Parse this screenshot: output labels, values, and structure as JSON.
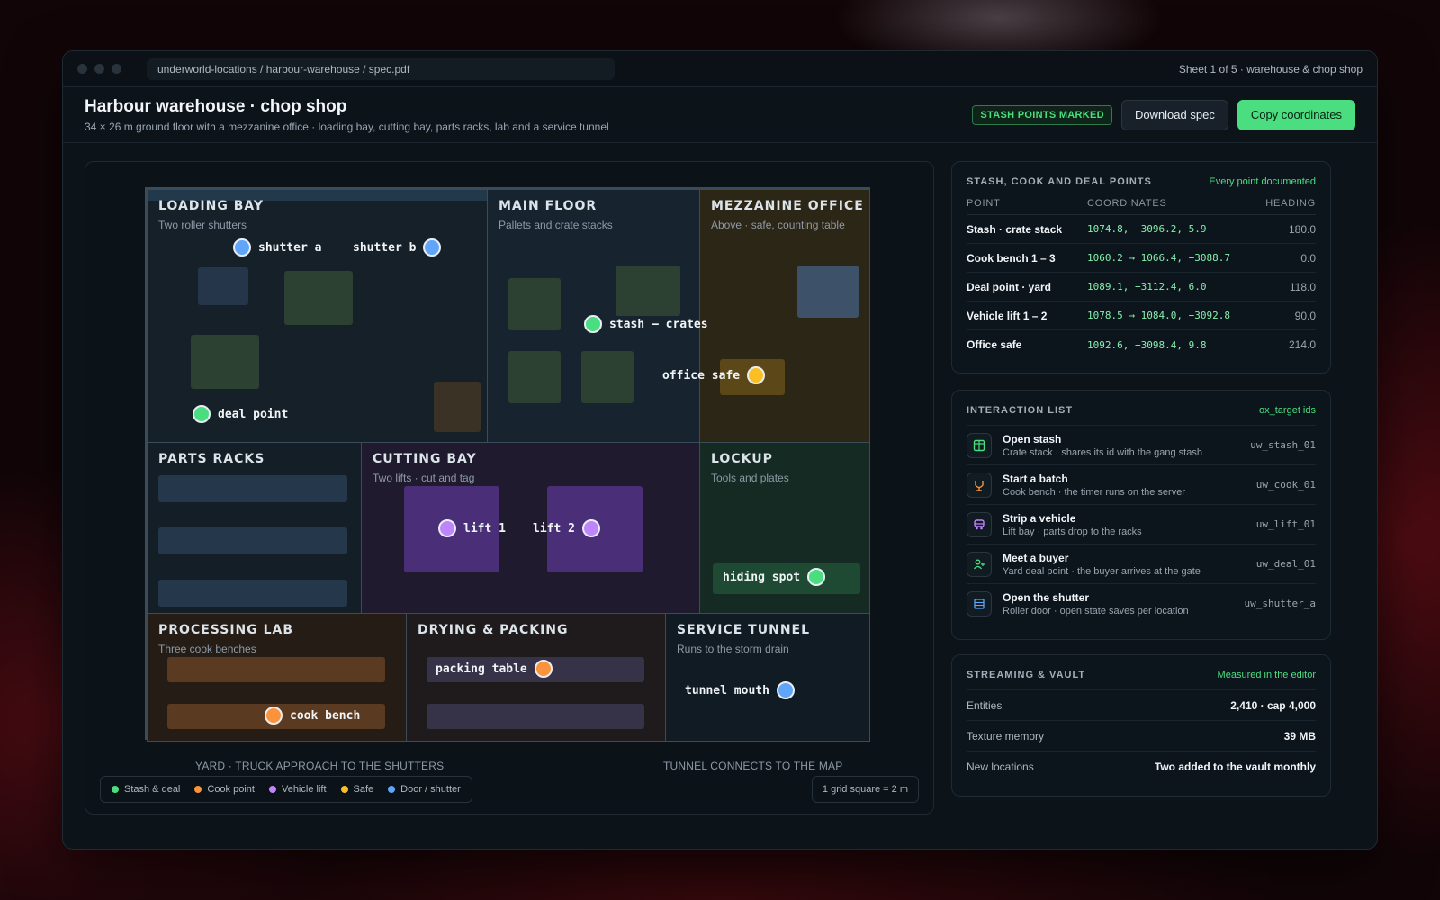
{
  "window": {
    "url": "underworld-locations / harbour-warehouse / spec.pdf",
    "sheet_info": "Sheet 1 of 5 · warehouse & chop shop"
  },
  "header": {
    "title": "Harbour warehouse · chop shop",
    "subtitle": "34 × 26 m ground floor with a mezzanine office · loading bay, cutting bay, parts racks, lab and a service tunnel",
    "badge": "STASH POINTS MARKED",
    "download_label": "Download spec",
    "copy_label": "Copy coordinates"
  },
  "map": {
    "rooms": {
      "loading_bay": {
        "title": "LOADING BAY",
        "subtitle": "Two roller shutters"
      },
      "main_floor": {
        "title": "MAIN FLOOR",
        "subtitle": "Pallets and crate stacks"
      },
      "mezzanine": {
        "title": "MEZZANINE OFFICE",
        "subtitle": "Above · safe, counting table"
      },
      "parts_racks": {
        "title": "PARTS RACKS"
      },
      "cutting_bay": {
        "title": "CUTTING BAY",
        "subtitle": "Two lifts · cut and tag"
      },
      "lockup": {
        "title": "LOCKUP",
        "subtitle": "Tools and plates"
      },
      "processing_lab": {
        "title": "PROCESSING LAB",
        "subtitle": "Three cook benches"
      },
      "drying_packing": {
        "title": "DRYING & PACKING"
      },
      "service_tunnel": {
        "title": "SERVICE TUNNEL",
        "subtitle": "Runs to the storm drain"
      }
    },
    "markers": {
      "shutter_a": "shutter a",
      "shutter_b": "shutter b",
      "deal_point": "deal point",
      "stash_crates": "stash – crates",
      "office_safe": "office safe",
      "lift_1": "lift 1",
      "lift_2": "lift 2",
      "hiding_spot": "hiding spot",
      "packing_table": "packing table",
      "cook_bench": "cook bench",
      "tunnel_mouth": "tunnel mouth"
    },
    "captions": {
      "yard": "YARD · TRUCK APPROACH TO THE SHUTTERS",
      "tunnel": "TUNNEL CONNECTS TO THE MAP"
    },
    "legend": [
      {
        "label": "Stash & deal",
        "color": "#4ade80"
      },
      {
        "label": "Cook point",
        "color": "#fb923c"
      },
      {
        "label": "Vehicle lift",
        "color": "#c084fc"
      },
      {
        "label": "Safe",
        "color": "#fbbf24"
      },
      {
        "label": "Door / shutter",
        "color": "#60a5fa"
      }
    ],
    "scale": "1 grid square = 2 m",
    "colors": {
      "stash": "#4ade80",
      "cook": "#fb923c",
      "lift": "#c084fc",
      "safe": "#fbbf24",
      "door": "#60a5fa"
    }
  },
  "points": {
    "title": "STASH, COOK AND DEAL POINTS",
    "note": "Every point documented",
    "columns": [
      "POINT",
      "COORDINATES",
      "HEADING"
    ],
    "rows": [
      {
        "point": "Stash · crate stack",
        "coords": "1074.8, −3096.2, 5.9",
        "heading": "180.0"
      },
      {
        "point": "Cook bench 1 – 3",
        "coords": "1060.2 → 1066.4, −3088.7",
        "heading": "0.0"
      },
      {
        "point": "Deal point · yard",
        "coords": "1089.1, −3112.4, 6.0",
        "heading": "118.0"
      },
      {
        "point": "Vehicle lift 1 – 2",
        "coords": "1078.5 → 1084.0, −3092.8",
        "heading": "90.0"
      },
      {
        "point": "Office safe",
        "coords": "1092.6, −3098.4, 9.8",
        "heading": "214.0"
      }
    ]
  },
  "interactions": {
    "title": "INTERACTION LIST",
    "note": "ox_target ids",
    "items": [
      {
        "title": "Open stash",
        "sub": "Crate stack · shares its id with the gang stash",
        "id": "uw_stash_01",
        "icon": "box-icon"
      },
      {
        "title": "Start a batch",
        "sub": "Cook bench · the timer runs on the server",
        "id": "uw_cook_01",
        "icon": "flask-icon"
      },
      {
        "title": "Strip a vehicle",
        "sub": "Lift bay · parts drop to the racks",
        "id": "uw_lift_01",
        "icon": "car-icon"
      },
      {
        "title": "Meet a buyer",
        "sub": "Yard deal point · the buyer arrives at the gate",
        "id": "uw_deal_01",
        "icon": "user-plus-icon"
      },
      {
        "title": "Open the shutter",
        "sub": "Roller door · open state saves per location",
        "id": "uw_shutter_a",
        "icon": "shutter-icon"
      }
    ]
  },
  "streaming": {
    "title": "STREAMING & VAULT",
    "note": "Measured in the editor",
    "rows": [
      {
        "label": "Entities",
        "value": "2,410 · cap 4,000"
      },
      {
        "label": "Texture memory",
        "value": "39 MB"
      },
      {
        "label": "New locations",
        "value": "Two added to the vault monthly"
      }
    ]
  }
}
